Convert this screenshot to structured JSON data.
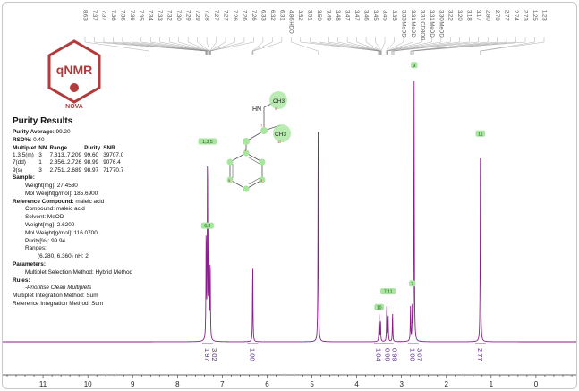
{
  "logo": {
    "text": "qNMR",
    "sub": "NOVA",
    "color": "#b23a3a"
  },
  "report": {
    "title": "Purity Results",
    "purity_average": {
      "label": "Purity Average:",
      "value": "99.20"
    },
    "rsd": {
      "label": "RSD%:",
      "value": "0.40"
    },
    "table": {
      "headers": [
        "Multiplet",
        "NN",
        "Range",
        "Purity",
        "SNR"
      ],
      "rows": [
        [
          "1,3,5(m)",
          "3",
          "7.313..7.209",
          "99.60",
          "39707.0"
        ],
        [
          "7(dd)",
          "1",
          "2.856..2.726",
          "98.99",
          "9076.4"
        ],
        [
          "9(s)",
          "3",
          "2.751..2.689",
          "98.97",
          "71770.7"
        ]
      ]
    },
    "sample": {
      "label": "Sample:",
      "weight": "Weight[mg]: 27.4530",
      "mol_weight": "Mol Weight[g/mol]: 185.6900"
    },
    "reference": {
      "label": "Reference Compound:",
      "name_inline": "maleic acid",
      "lines": [
        "Compound: maleic acid",
        "Solvent: MeOD",
        "Weight[mg]: 2.6200",
        "Mol Weight[g/mol]: 116.0700",
        "Purity[%]: 99.94",
        "Ranges:"
      ],
      "range_line": "(6.280, 6.360) nH: 2"
    },
    "parameters": {
      "label": "Parameters:",
      "line": "Multiplet Selection Method: Hybrid Method"
    },
    "rules": {
      "label": "Rules:",
      "line1": "-Prioritise Clean Multiplets",
      "line2": "Multiplet Integration Method: Sum",
      "line3": "Reference Integration Method: Sum"
    }
  },
  "molecule": {
    "atom_hn": "HN",
    "atom_ch3": "CH3",
    "atom_labels": [
      "9",
      "11",
      "7",
      "1",
      "3",
      "5"
    ]
  },
  "chart_data": {
    "type": "line",
    "xlabel": "",
    "xlim": [
      11.9,
      -0.9
    ],
    "x_ticks": [
      11,
      10,
      9,
      8,
      7,
      6,
      5,
      4,
      3,
      2,
      1,
      0
    ],
    "peak_labels": [
      "8.63",
      "7.37",
      "7.37",
      "7.36",
      "7.36",
      "7.36",
      "7.35",
      "7.34",
      "7.33",
      "7.32",
      "7.30",
      "7.29",
      "7.29",
      "7.28",
      "7.27",
      "7.27",
      "7.26",
      "7.26",
      "7.26",
      "6.33",
      "6.32",
      "6.31",
      "4.86 HDO",
      "3.52",
      "3.51",
      "3.50",
      "3.49",
      "3.48",
      "3.47",
      "3.47",
      "3.46",
      "3.45",
      "3.45",
      "3.35",
      "3.33 MeOD",
      "3.31 MeOD",
      "3.31 CD3OD",
      "3.31 MeOD",
      "3.30 MeOD",
      "3.22",
      "3.20",
      "3.18",
      "3.17",
      "2.80",
      "2.78",
      "2.77",
      "2.74",
      "2.73",
      "1.25",
      "1.23"
    ],
    "peak_label_ppm": [
      8.63,
      7.37,
      7.37,
      7.36,
      7.36,
      7.36,
      7.35,
      7.34,
      7.33,
      7.32,
      7.3,
      7.29,
      7.29,
      7.28,
      7.27,
      7.27,
      7.26,
      7.26,
      7.26,
      6.33,
      6.32,
      6.31,
      4.86,
      3.52,
      3.51,
      3.5,
      3.49,
      3.48,
      3.47,
      3.47,
      3.46,
      3.45,
      3.45,
      3.35,
      3.33,
      3.31,
      3.31,
      3.31,
      3.3,
      3.22,
      3.2,
      3.18,
      3.17,
      2.8,
      2.78,
      2.77,
      2.74,
      2.73,
      1.25,
      1.23
    ],
    "peaks": [
      {
        "ppm": 7.36,
        "h": 0.42
      },
      {
        "ppm": 7.33,
        "h": 0.71
      },
      {
        "ppm": 7.3,
        "h": 0.45
      },
      {
        "ppm": 7.27,
        "h": 0.3
      },
      {
        "ppm": 6.32,
        "h": 0.29
      },
      {
        "ppm": 4.86,
        "h": 0.82
      },
      {
        "ppm": 3.5,
        "h": 0.11
      },
      {
        "ppm": 3.47,
        "h": 0.08
      },
      {
        "ppm": 3.33,
        "h": 0.14
      },
      {
        "ppm": 3.3,
        "h": 0.1
      },
      {
        "ppm": 3.2,
        "h": 0.11
      },
      {
        "ppm": 2.8,
        "h": 0.13
      },
      {
        "ppm": 2.76,
        "h": 0.12
      },
      {
        "ppm": 2.72,
        "h": 1.0
      },
      {
        "ppm": 1.24,
        "h": 0.75
      }
    ],
    "integrals": [
      {
        "ppm": 7.33,
        "label": "1.97",
        "sub": "3.02"
      },
      {
        "ppm": 6.32,
        "label": "1.00",
        "sub": ""
      },
      {
        "ppm": 3.5,
        "label": "1.04",
        "sub": ""
      },
      {
        "ppm": 3.3,
        "label": "0.99",
        "sub": "0.99"
      },
      {
        "ppm": 2.74,
        "label": "1.00",
        "sub": "3.07"
      },
      {
        "ppm": 1.24,
        "label": "2.77",
        "sub": ""
      }
    ],
    "multiplet_labels": [
      {
        "ppm": 7.33,
        "label": "1,3,5",
        "level": 0.76
      },
      {
        "ppm": 7.33,
        "label": "6,8",
        "level": 0.44
      },
      {
        "ppm": 3.5,
        "label": "10",
        "level": 0.13
      },
      {
        "ppm": 3.3,
        "label": "7,11",
        "level": 0.19
      },
      {
        "ppm": 2.76,
        "label": "7",
        "level": 0.22
      },
      {
        "ppm": 2.72,
        "label": "9",
        "level": 1.05
      },
      {
        "ppm": 1.24,
        "label": "11",
        "level": 0.79
      }
    ],
    "line_color": "#8a1e8a",
    "integral_color": "#5a2a8a",
    "label_bg": "#a8e6a0"
  }
}
